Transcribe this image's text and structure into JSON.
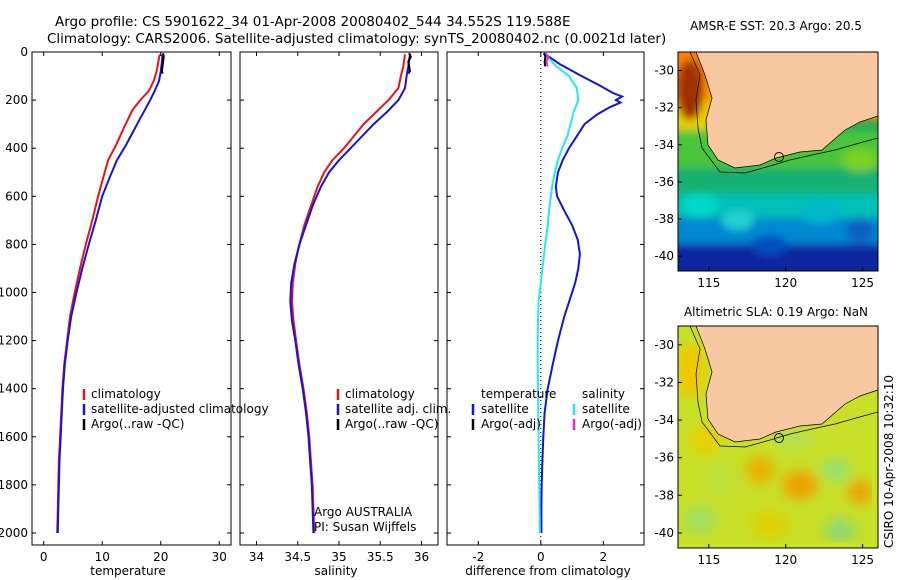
{
  "header": {
    "line1": "Argo profile: CS 5901622_34 01-Apr-2008 20080402_544 34.552S 119.588E",
    "line2": "Climatology: CARS2006. Satellite-adjusted climatology: synTS_20080402.nc (0.0021d later)"
  },
  "side_label": "CSIRO 10-Apr-2008 10:32:10",
  "colors": {
    "climatology": "#ee1111",
    "satellite": "#1414dd",
    "argo": "#000000",
    "cyan": "#22ecec",
    "magenta": "#ee22ee",
    "land": "#f8c8a0"
  },
  "chart_data": [
    {
      "type": "line",
      "xlabel": "temperature",
      "ylabel": "",
      "xlim": [
        -2,
        32
      ],
      "ylim": [
        2050,
        0
      ],
      "xticks": [
        "0",
        "10",
        "20",
        "30"
      ],
      "yticks": [
        "0",
        "200",
        "400",
        "600",
        "800",
        "1000",
        "1200",
        "1400",
        "1600",
        "1800",
        "2000"
      ],
      "legend": {
        "placement": "lower-right",
        "entries": [
          {
            "label": "climatology",
            "color": "#ee1111"
          },
          {
            "label": "satellite-adjusted climatology",
            "color": "#1414dd"
          },
          {
            "label": "Argo(..raw -QC)",
            "color": "#000000"
          }
        ]
      },
      "series": [
        {
          "color": "#ee1111",
          "points": [
            [
              19.8,
              10
            ],
            [
              19.6,
              40
            ],
            [
              19.3,
              80
            ],
            [
              18.8,
              120
            ],
            [
              18,
              160
            ],
            [
              16.5,
              200
            ],
            [
              15.2,
              240
            ],
            [
              14.4,
              280
            ],
            [
              13.6,
              320
            ],
            [
              12.5,
              380
            ],
            [
              11,
              450
            ],
            [
              10.2,
              520
            ],
            [
              9.3,
              600
            ],
            [
              8.3,
              700
            ],
            [
              7.2,
              800
            ],
            [
              6.2,
              900
            ],
            [
              5.3,
              1000
            ],
            [
              4.5,
              1100
            ],
            [
              4,
              1200
            ],
            [
              3.5,
              1300
            ],
            [
              3.2,
              1400
            ],
            [
              3,
              1500
            ],
            [
              2.8,
              1600
            ],
            [
              2.6,
              1700
            ],
            [
              2.5,
              1800
            ],
            [
              2.4,
              1900
            ],
            [
              2.3,
              2000
            ]
          ]
        },
        {
          "color": "#1414dd",
          "points": [
            [
              20.3,
              10
            ],
            [
              20.2,
              40
            ],
            [
              20,
              80
            ],
            [
              19.7,
              120
            ],
            [
              19,
              160
            ],
            [
              18.2,
              200
            ],
            [
              17.3,
              240
            ],
            [
              16.4,
              280
            ],
            [
              15.3,
              330
            ],
            [
              14,
              390
            ],
            [
              12.5,
              450
            ],
            [
              11.3,
              520
            ],
            [
              10,
              600
            ],
            [
              8.9,
              700
            ],
            [
              7.7,
              800
            ],
            [
              6.6,
              900
            ],
            [
              5.6,
              1000
            ],
            [
              4.7,
              1100
            ],
            [
              4.1,
              1200
            ],
            [
              3.6,
              1300
            ],
            [
              3.3,
              1400
            ],
            [
              3.1,
              1500
            ],
            [
              2.9,
              1600
            ],
            [
              2.7,
              1700
            ],
            [
              2.6,
              1800
            ],
            [
              2.5,
              1900
            ],
            [
              2.4,
              2000
            ]
          ]
        },
        {
          "color": "#000000",
          "points": [
            [
              20.4,
              5
            ],
            [
              20.5,
              20
            ],
            [
              20.4,
              40
            ],
            [
              20.3,
              60
            ],
            [
              20.2,
              80
            ],
            [
              20.3,
              90
            ]
          ]
        }
      ]
    },
    {
      "type": "line",
      "xlabel": "salinity",
      "ylabel": "",
      "xlim": [
        33.8,
        36.2
      ],
      "ylim": [
        2050,
        0
      ],
      "xticks": [
        "34",
        "34.5",
        "35",
        "35.5",
        "36"
      ],
      "annotation": [
        "Argo AUSTRALIA",
        "PI: Susan Wijffels"
      ],
      "legend": {
        "placement": "lower-right",
        "entries": [
          {
            "label": "climatology",
            "color": "#ee1111"
          },
          {
            "label": "satellite adj. clim.",
            "color": "#1414dd"
          },
          {
            "label": "Argo(..raw -QC)",
            "color": "#000000"
          }
        ]
      },
      "series": [
        {
          "color": "#ee1111",
          "points": [
            [
              35.8,
              10
            ],
            [
              35.78,
              60
            ],
            [
              35.75,
              100
            ],
            [
              35.72,
              150
            ],
            [
              35.6,
              200
            ],
            [
              35.45,
              250
            ],
            [
              35.3,
              300
            ],
            [
              35.18,
              350
            ],
            [
              35.06,
              400
            ],
            [
              34.92,
              450
            ],
            [
              34.82,
              500
            ],
            [
              34.74,
              560
            ],
            [
              34.66,
              640
            ],
            [
              34.58,
              720
            ],
            [
              34.52,
              800
            ],
            [
              34.47,
              880
            ],
            [
              34.44,
              960
            ],
            [
              34.43,
              1040
            ],
            [
              34.45,
              1120
            ],
            [
              34.48,
              1200
            ],
            [
              34.52,
              1300
            ],
            [
              34.57,
              1400
            ],
            [
              34.61,
              1500
            ],
            [
              34.64,
              1600
            ],
            [
              34.66,
              1700
            ],
            [
              34.68,
              1800
            ],
            [
              34.69,
              1900
            ],
            [
              34.7,
              2000
            ]
          ]
        },
        {
          "color": "#1414dd",
          "points": [
            [
              35.86,
              10
            ],
            [
              35.84,
              60
            ],
            [
              35.82,
              100
            ],
            [
              35.8,
              150
            ],
            [
              35.72,
              200
            ],
            [
              35.58,
              250
            ],
            [
              35.42,
              300
            ],
            [
              35.28,
              350
            ],
            [
              35.14,
              400
            ],
            [
              35,
              450
            ],
            [
              34.88,
              500
            ],
            [
              34.78,
              560
            ],
            [
              34.68,
              640
            ],
            [
              34.6,
              720
            ],
            [
              34.52,
              800
            ],
            [
              34.46,
              880
            ],
            [
              34.42,
              960
            ],
            [
              34.41,
              1040
            ],
            [
              34.43,
              1120
            ],
            [
              34.47,
              1200
            ],
            [
              34.51,
              1300
            ],
            [
              34.56,
              1400
            ],
            [
              34.6,
              1500
            ],
            [
              34.63,
              1600
            ],
            [
              34.65,
              1700
            ],
            [
              34.67,
              1800
            ],
            [
              34.68,
              1900
            ],
            [
              34.69,
              2000
            ]
          ]
        },
        {
          "color": "#000000",
          "points": [
            [
              35.85,
              5
            ],
            [
              35.87,
              20
            ],
            [
              35.84,
              40
            ],
            [
              35.85,
              60
            ],
            [
              35.86,
              80
            ],
            [
              35.84,
              90
            ]
          ]
        }
      ]
    },
    {
      "type": "line",
      "xlabel": "difference from climatology",
      "ylabel": "",
      "xlim": [
        -3,
        3.3
      ],
      "ylim": [
        2050,
        0
      ],
      "xticks": [
        "-2",
        "0",
        "2"
      ],
      "zero_line": true,
      "legend": {
        "placement": "lower-center",
        "columns": [
          {
            "heading": "temperature",
            "entries": [
              {
                "label": "satellite",
                "color": "#1414dd"
              },
              {
                "label": "Argo(-adj)",
                "color": "#000000"
              }
            ]
          },
          {
            "heading": "salinity",
            "entries": [
              {
                "label": "satellite",
                "color": "#22ecec"
              },
              {
                "label": "Argo(-adj)",
                "color": "#ee22ee"
              }
            ]
          }
        ]
      },
      "series": [
        {
          "color": "#1414dd",
          "points": [
            [
              0.1,
              5
            ],
            [
              0.6,
              50
            ],
            [
              1.3,
              100
            ],
            [
              1.9,
              140
            ],
            [
              2.3,
              170
            ],
            [
              2.6,
              185
            ],
            [
              2.4,
              200
            ],
            [
              2.55,
              210
            ],
            [
              2.2,
              230
            ],
            [
              1.8,
              260
            ],
            [
              1.4,
              300
            ],
            [
              1.15,
              350
            ],
            [
              0.9,
              400
            ],
            [
              0.7,
              450
            ],
            [
              0.55,
              500
            ],
            [
              0.48,
              560
            ],
            [
              0.52,
              600
            ],
            [
              0.75,
              660
            ],
            [
              1.0,
              720
            ],
            [
              1.18,
              780
            ],
            [
              1.25,
              840
            ],
            [
              1.2,
              900
            ],
            [
              1.1,
              960
            ],
            [
              0.9,
              1040
            ],
            [
              0.75,
              1100
            ],
            [
              0.55,
              1200
            ],
            [
              0.38,
              1300
            ],
            [
              0.22,
              1400
            ],
            [
              0.12,
              1500
            ],
            [
              0.08,
              1600
            ],
            [
              0.05,
              1700
            ],
            [
              0.03,
              1800
            ],
            [
              0.02,
              1900
            ],
            [
              0.02,
              2000
            ]
          ]
        },
        {
          "color": "#22ecec",
          "points": [
            [
              0.1,
              5
            ],
            [
              0.5,
              60
            ],
            [
              0.9,
              100
            ],
            [
              1.15,
              150
            ],
            [
              1.2,
              200
            ],
            [
              1.05,
              250
            ],
            [
              0.95,
              300
            ],
            [
              0.85,
              350
            ],
            [
              0.68,
              400
            ],
            [
              0.55,
              450
            ],
            [
              0.45,
              500
            ],
            [
              0.36,
              560
            ],
            [
              0.28,
              640
            ],
            [
              0.22,
              720
            ],
            [
              0.14,
              800
            ],
            [
              0.07,
              880
            ],
            [
              0.0,
              960
            ],
            [
              -0.07,
              1040
            ],
            [
              -0.09,
              1120
            ],
            [
              -0.1,
              1200
            ],
            [
              -0.1,
              1300
            ],
            [
              -0.09,
              1400
            ],
            [
              -0.08,
              1500
            ],
            [
              -0.07,
              1600
            ],
            [
              -0.06,
              1700
            ],
            [
              -0.05,
              1800
            ],
            [
              -0.04,
              1900
            ],
            [
              -0.03,
              2000
            ]
          ]
        },
        {
          "color": "#000000",
          "points": [
            [
              0.1,
              5
            ],
            [
              0.15,
              20
            ],
            [
              0.12,
              40
            ],
            [
              0.14,
              60
            ]
          ]
        },
        {
          "color": "#ee22ee",
          "points": [
            [
              0.15,
              5
            ],
            [
              0.25,
              20
            ],
            [
              0.18,
              40
            ],
            [
              0.22,
              60
            ]
          ]
        }
      ]
    },
    {
      "type": "heatmap",
      "title": "AMSR-E SST: 20.3 Argo: 20.5",
      "xlim": [
        113,
        126
      ],
      "ylim": [
        -40.8,
        -29
      ],
      "xticks": [
        "115",
        "120",
        "125"
      ],
      "yticks": [
        "-30",
        "-32",
        "-34",
        "-36",
        "-38",
        "-40"
      ],
      "float_position": [
        119.588,
        -34.552
      ]
    },
    {
      "type": "heatmap",
      "title": "Altimetric SLA: 0.19 Argo: NaN",
      "xlim": [
        113,
        126
      ],
      "ylim": [
        -40.8,
        -29
      ],
      "xticks": [
        "115",
        "120",
        "125"
      ],
      "yticks": [
        "-30",
        "-32",
        "-34",
        "-36",
        "-38",
        "-40"
      ],
      "float_position": [
        119.588,
        -34.552
      ]
    }
  ]
}
